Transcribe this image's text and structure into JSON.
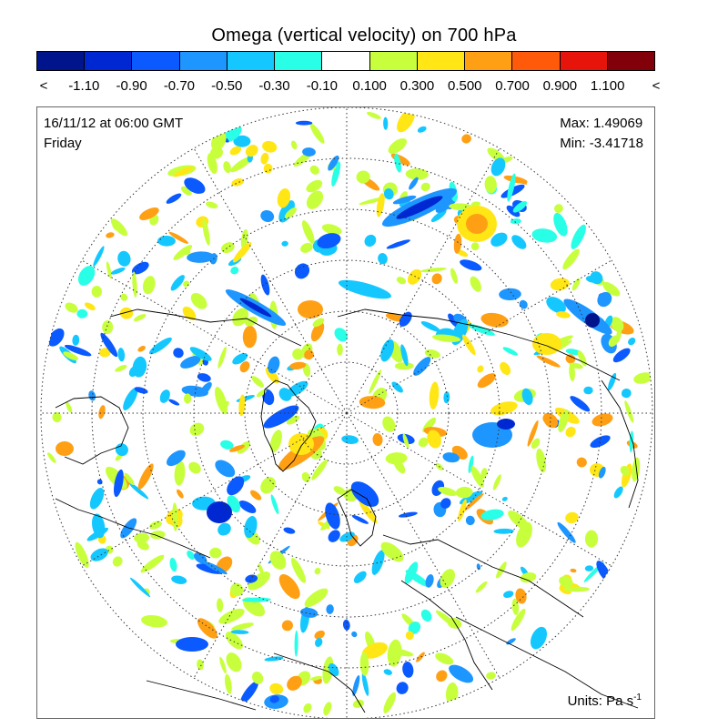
{
  "title": "Omega (vertical velocity) on 700 hPa",
  "colorbar": {
    "colors": [
      "#00148c",
      "#0028d2",
      "#0a5aff",
      "#1e96ff",
      "#14c8ff",
      "#28ffe6",
      "#ffffff",
      "#c8ff3c",
      "#ffe614",
      "#ffa014",
      "#ff5a0a",
      "#e6140a",
      "#82000a"
    ],
    "labels": [
      "<",
      "-1.10",
      "-0.90",
      "-0.70",
      "-0.50",
      "-0.30",
      "-0.10",
      "0.100",
      "0.300",
      "0.500",
      "0.700",
      "0.900",
      "1.100",
      "<"
    ]
  },
  "valid_time": "16/11/12 at 06:00 GMT",
  "weekday": "Friday",
  "max_label": "Max: 1.49069",
  "min_label": "Min: -3.41718",
  "units": {
    "text": "Units: Pa s",
    "exponent": "-1"
  },
  "map": {
    "projection": "north-polar-stereographic",
    "graticule": "dotted",
    "features": [
      {
        "kind": "ascent",
        "color": "#ffffff"
      },
      {
        "kind": "descent",
        "color": "#c8ff3c"
      }
    ]
  }
}
